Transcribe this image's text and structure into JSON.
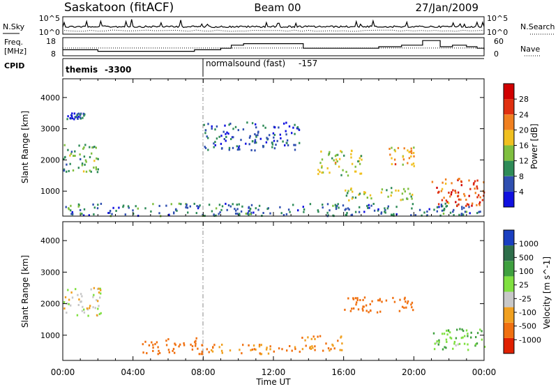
{
  "header": {
    "station": "Saskatoon (fitACF)",
    "beam": "Beam 00",
    "date": "27/Jan/2009"
  },
  "noise_panel": {
    "left_label": "N.Sky",
    "right_label": "N.Search",
    "left_ticks": [
      "10^5",
      "10^0"
    ],
    "right_ticks": [
      "10^5",
      "10^0"
    ]
  },
  "freq_panel": {
    "left_label_line1": "Freq.",
    "left_label_line2": "[MHz]",
    "right_label": "Nave",
    "left_ticks": [
      "18",
      "8"
    ],
    "right_ticks": [
      "60",
      "0"
    ]
  },
  "cpid_panel": {
    "label": "CPID",
    "programs": [
      {
        "name": "themis",
        "id": "-3300"
      },
      {
        "name": "normalsound (fast)",
        "id": "-157"
      }
    ]
  },
  "axes": {
    "xlabel": "Time UT",
    "ylabel": "Slant Range [km]",
    "x_ticks": [
      "00:00",
      "04:00",
      "08:00",
      "12:00",
      "16:00",
      "20:00",
      "00:00"
    ],
    "y_ticks": [
      "1000",
      "2000",
      "3000",
      "4000"
    ]
  },
  "power_colorbar": {
    "label": "Power [dB]",
    "ticks": [
      "4",
      "8",
      "12",
      "16",
      "20",
      "24",
      "28"
    ],
    "colors": [
      "#1010e0",
      "#2f4fb0",
      "#2e8b57",
      "#7fbf3f",
      "#f0c020",
      "#f08020",
      "#e03010",
      "#d00000"
    ]
  },
  "velocity_colorbar": {
    "label": "Velocity [m s^-1]",
    "ticks": [
      "1000",
      "500",
      "100",
      "25",
      "-25",
      "-100",
      "-500",
      "-1000"
    ],
    "colors": [
      "#1a3fc0",
      "#2e6e4a",
      "#3fa03f",
      "#80e040",
      "#c8c8c8",
      "#f0a020",
      "#f07010",
      "#e02000"
    ]
  },
  "chart_data": {
    "type": "heatmap",
    "title": "Saskatoon (fitACF)  Beam 00  27/Jan/2009",
    "xlabel": "Time UT",
    "ylabel": "Slant Range [km]",
    "xlim": [
      0,
      24
    ],
    "ylim": [
      200,
      4600
    ],
    "freq_step": {
      "x": [
        0,
        2,
        7.5,
        9,
        9.6,
        10.3,
        13.7,
        15.3,
        18,
        19.3,
        20.5,
        21.5,
        22.2,
        23,
        23.6,
        24
      ],
      "freq_mhz": [
        11,
        10,
        11,
        12,
        14,
        15,
        12,
        12,
        13,
        14,
        17,
        13,
        14,
        13,
        12,
        11
      ]
    },
    "nave_dotted": {
      "value": 25
    },
    "power_regions": [
      {
        "t0": 0.0,
        "t1": 2.2,
        "r0": 1600,
        "r1": 2500,
        "level": 12
      },
      {
        "t0": 0.2,
        "t1": 1.2,
        "r0": 3300,
        "r1": 3500,
        "level": 6
      },
      {
        "t0": 0.1,
        "t1": 24.0,
        "r0": 200,
        "r1": 600,
        "level": 8
      },
      {
        "t0": 8.0,
        "t1": 13.5,
        "r0": 2300,
        "r1": 3200,
        "level": 6
      },
      {
        "t0": 14.5,
        "t1": 17.0,
        "r0": 1500,
        "r1": 2300,
        "level": 16
      },
      {
        "t0": 16.0,
        "t1": 20.0,
        "r0": 700,
        "r1": 1100,
        "level": 14
      },
      {
        "t0": 18.5,
        "t1": 20.0,
        "r0": 1800,
        "r1": 2400,
        "level": 20
      },
      {
        "t0": 21.0,
        "t1": 24.0,
        "r0": 500,
        "r1": 1400,
        "level": 24
      }
    ],
    "velocity_regions": [
      {
        "t0": 0.0,
        "t1": 2.2,
        "r0": 1600,
        "r1": 2500,
        "level": 0
      },
      {
        "t0": 4.5,
        "t1": 8.0,
        "r0": 400,
        "r1": 900,
        "level": -200
      },
      {
        "t0": 8.0,
        "t1": 13.5,
        "r0": 400,
        "r1": 700,
        "level": -100
      },
      {
        "t0": 13.5,
        "t1": 16.0,
        "r0": 500,
        "r1": 1000,
        "level": -100
      },
      {
        "t0": 16.0,
        "t1": 20.0,
        "r0": 1700,
        "r1": 2200,
        "level": -300
      },
      {
        "t0": 21.0,
        "t1": 24.0,
        "r0": 500,
        "r1": 1200,
        "level": 80
      }
    ]
  }
}
